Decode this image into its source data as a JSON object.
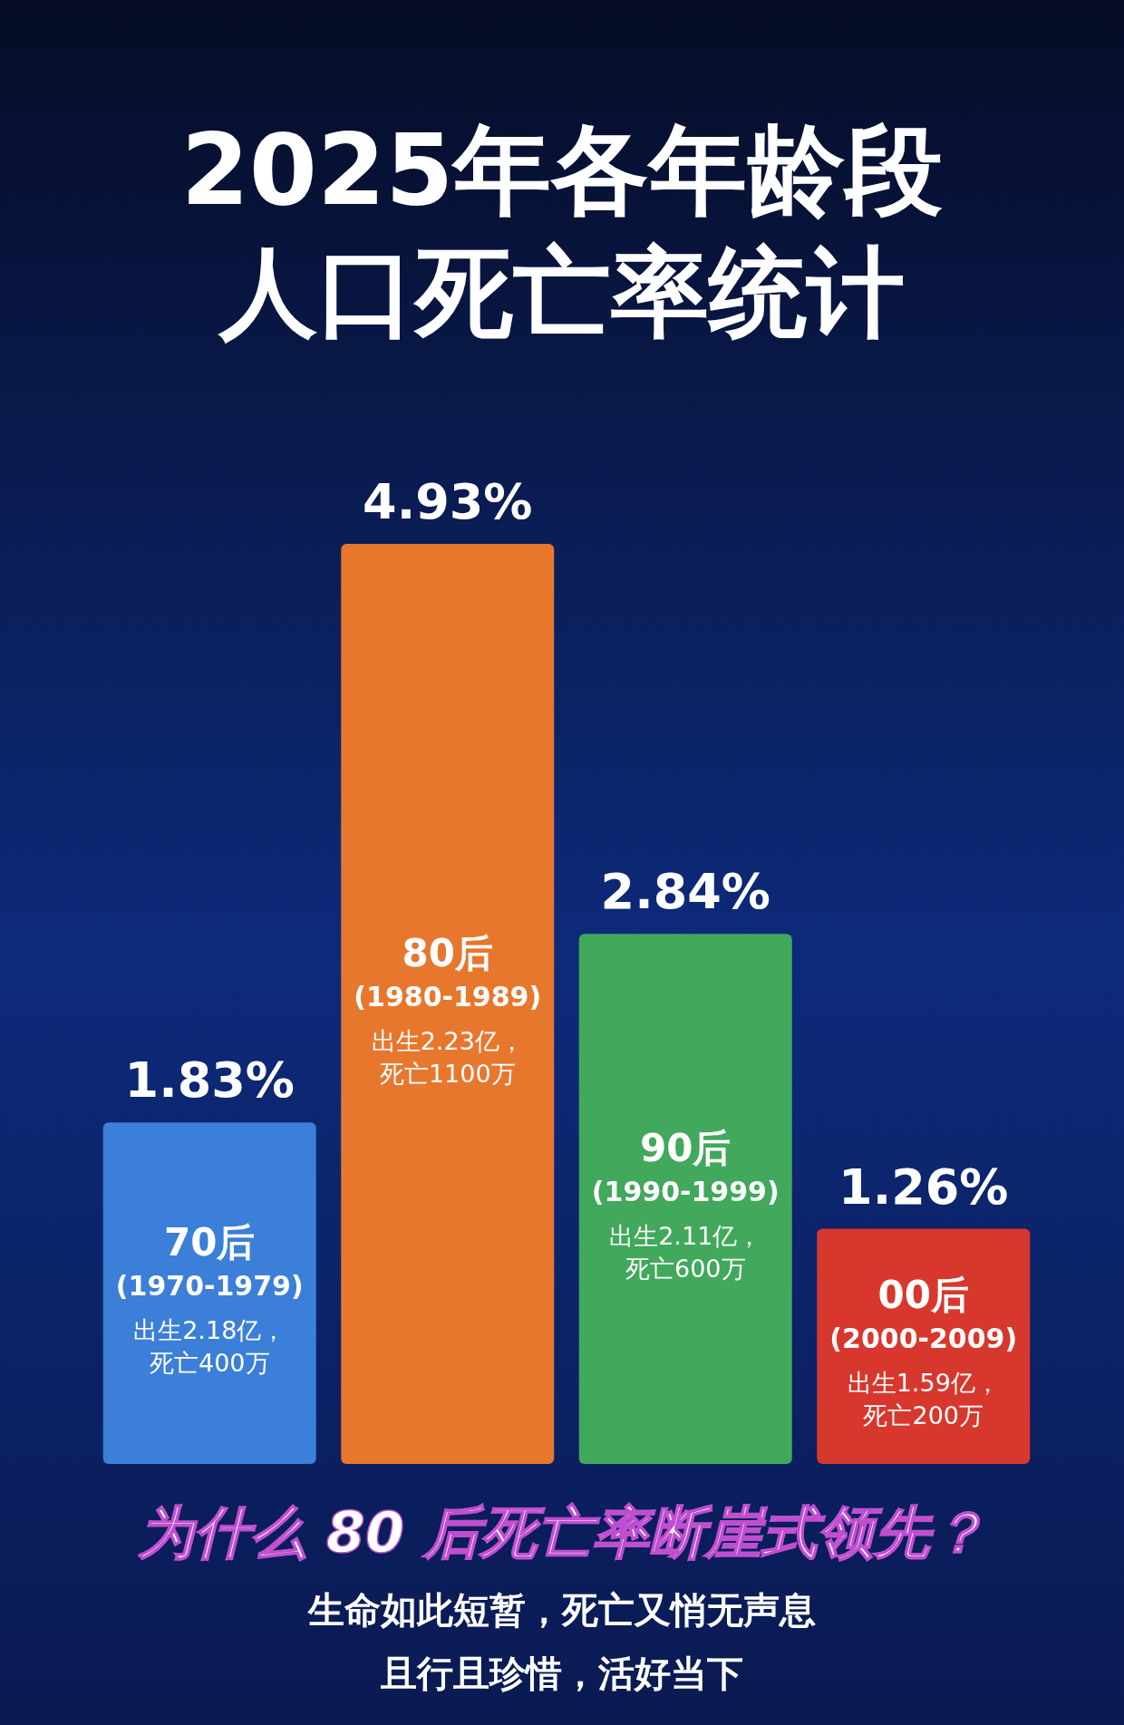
{
  "chart_data": {
    "type": "bar",
    "title": "2025年各年龄段人口死亡率统计",
    "subtitle": "为什么 80 后死亡率断崖式领先？",
    "categories": [
      "70后",
      "80后",
      "90后",
      "00后"
    ],
    "values": [
      1.83,
      4.93,
      2.84,
      1.26
    ],
    "value_labels": [
      "1.83%",
      "4.93%",
      "2.84%",
      "1.26%"
    ],
    "colors": [
      "#3b7fd8",
      "#e8772e",
      "#41a85c",
      "#d8372d"
    ],
    "annotations": [
      "(1970-1979)",
      "出生2.18亿，",
      "死亡400万",
      "(1980-1989)",
      "出生2.23亿，",
      "死亡1100万",
      "(1990-1999)",
      "出生2.11亿，",
      "死亡600万",
      "(2000-2009)",
      "出生1.59亿，",
      "死亡200万",
      "生命如此短暂，死亡又悄无声息",
      "且行且珍惜，活好当下"
    ]
  }
}
